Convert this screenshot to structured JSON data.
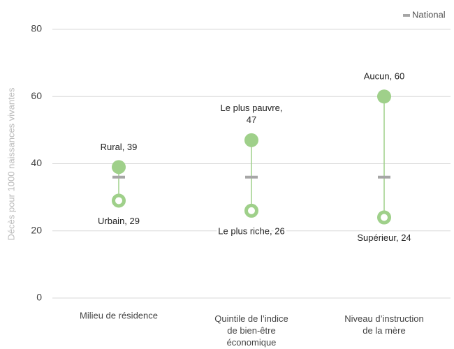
{
  "chart_data": {
    "type": "dumbbell",
    "y_label": "Décès pour 1000 naissances vivantes",
    "categories": [
      "Milieu de résidence",
      "Quintile de l’indice de bien-être économique",
      "Niveau d’instruction de la mère"
    ],
    "series": [
      {
        "name": "National",
        "color": "#a6a6a6",
        "values": [
          36,
          36,
          36
        ]
      },
      {
        "color": "#9fd08a",
        "values": [
          39,
          47,
          60
        ],
        "value_labels": [
          "Rural, 39",
          "Le plus pauvre, 47",
          "Aucun, 60"
        ]
      },
      {
        "color": "#9fd08a",
        "values": [
          29,
          26,
          24
        ],
        "value_labels": [
          "Urbain, 29",
          "Le plus riche, 26",
          "Supérieur, 24"
        ]
      }
    ],
    "ylim": [
      0,
      80
    ],
    "yticks": [
      0,
      20,
      40,
      60,
      80
    ],
    "grid": true,
    "legend": "top-right"
  }
}
